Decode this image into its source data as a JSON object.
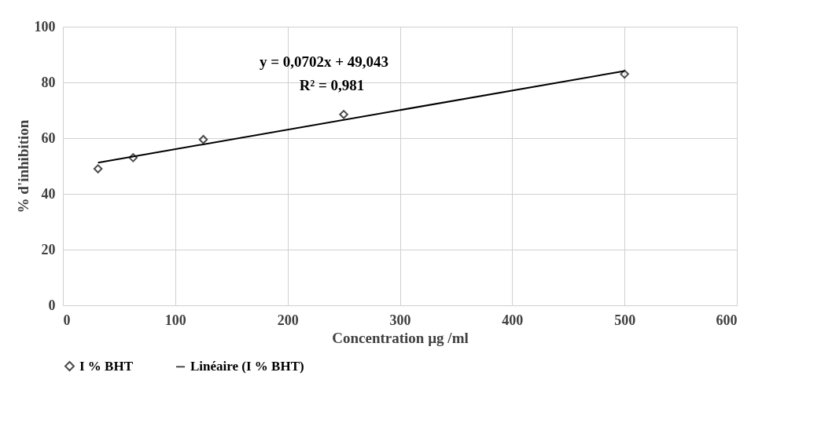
{
  "chart_data": {
    "type": "scatter",
    "xlabel": "Concentration µg /ml",
    "ylabel": "% d'inhibition",
    "xlim": [
      0,
      600
    ],
    "xticks": [
      0,
      100,
      200,
      300,
      400,
      500,
      600
    ],
    "ylim": [
      0,
      100
    ],
    "yticks": [
      0,
      20,
      40,
      60,
      80,
      100
    ],
    "grid": true,
    "legend": "bottom",
    "annotations": [
      "y = 0,0702x + 49,043",
      "R² = 0,981"
    ],
    "series": [
      {
        "name": "I % BHT",
        "marker": "diamond",
        "color": "#000000",
        "x": [
          31.25,
          62.5,
          125,
          250,
          500
        ],
        "values": [
          49,
          53,
          59.5,
          68.5,
          83
        ]
      },
      {
        "name": "Linéaire (I % BHT)",
        "type": "line",
        "marker": "none",
        "line_style": "solid",
        "color": "#000000",
        "x": [
          31.25,
          500
        ],
        "values": [
          51.2,
          84.1
        ]
      }
    ]
  }
}
